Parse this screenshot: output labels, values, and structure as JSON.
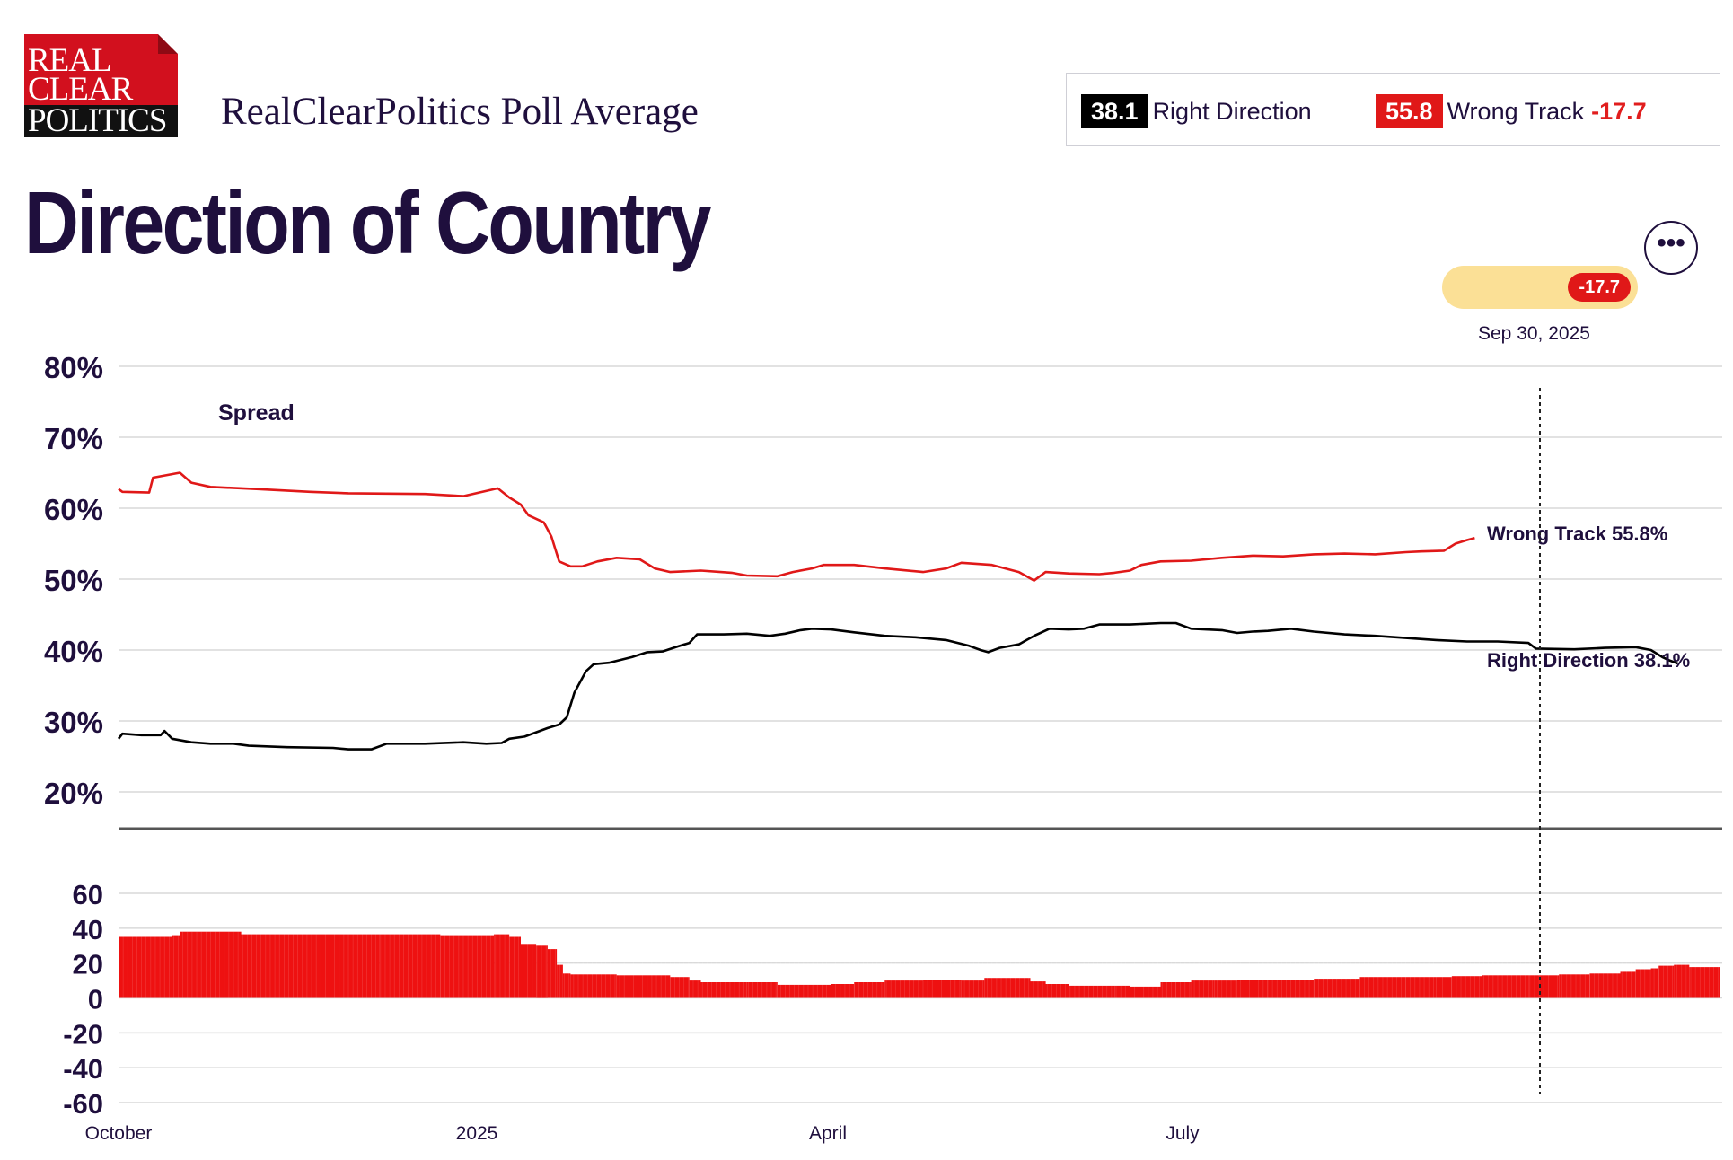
{
  "logo": {
    "line1": "REAL",
    "line2": "CLEAR",
    "line3": "POLITICS"
  },
  "header": {
    "subtitle": "RealClearPolitics Poll Average",
    "title": "Direction of Country"
  },
  "summary": {
    "right_value": "38.1",
    "right_label": "Right Direction",
    "wrong_value": "55.8",
    "wrong_label": "Wrong Track",
    "spread": "-17.7"
  },
  "toolbar": {
    "more_label": "•••"
  },
  "hover": {
    "spread_badge": "-17.7",
    "date": "Sep 30, 2025"
  },
  "colors": {
    "right": "#000000",
    "wrong": "#e01818",
    "spread_bar": "#ee1111",
    "pill": "#fbe096",
    "text": "#1f0f3d"
  },
  "chart_data": [
    {
      "type": "line",
      "yticks": [
        "80%",
        "70%",
        "60%",
        "50%",
        "40%",
        "30%",
        "20%"
      ],
      "ylim": [
        15,
        80
      ],
      "x_ticks": [
        "October",
        "2025",
        "April",
        "July"
      ],
      "series": [
        {
          "name": "Wrong Track",
          "end_label": "Wrong Track 55.8%",
          "color": "#e01818",
          "points": [
            [
              0,
              62.7
            ],
            [
              5,
              62.3
            ],
            [
              40,
              62.2
            ],
            [
              45,
              64.3
            ],
            [
              80,
              65.0
            ],
            [
              95,
              63.6
            ],
            [
              120,
              63.0
            ],
            [
              180,
              62.7
            ],
            [
              250,
              62.3
            ],
            [
              300,
              62.1
            ],
            [
              400,
              62.0
            ],
            [
              450,
              61.7
            ],
            [
              495,
              62.8
            ],
            [
              510,
              61.5
            ],
            [
              525,
              60.5
            ],
            [
              535,
              59.0
            ],
            [
              555,
              58.0
            ],
            [
              565,
              56.0
            ],
            [
              575,
              52.5
            ],
            [
              590,
              51.8
            ],
            [
              605,
              51.8
            ],
            [
              625,
              52.5
            ],
            [
              650,
              53.0
            ],
            [
              680,
              52.8
            ],
            [
              700,
              51.5
            ],
            [
              720,
              51.0
            ],
            [
              760,
              51.2
            ],
            [
              800,
              50.9
            ],
            [
              820,
              50.5
            ],
            [
              860,
              50.4
            ],
            [
              880,
              51.0
            ],
            [
              905,
              51.5
            ],
            [
              920,
              52.0
            ],
            [
              960,
              52.0
            ],
            [
              1000,
              51.5
            ],
            [
              1050,
              51.0
            ],
            [
              1080,
              51.5
            ],
            [
              1100,
              52.3
            ],
            [
              1140,
              52.0
            ],
            [
              1175,
              51.0
            ],
            [
              1195,
              49.8
            ],
            [
              1210,
              51.0
            ],
            [
              1240,
              50.8
            ],
            [
              1280,
              50.7
            ],
            [
              1300,
              50.9
            ],
            [
              1320,
              51.2
            ],
            [
              1335,
              52.0
            ],
            [
              1360,
              52.5
            ],
            [
              1400,
              52.6
            ],
            [
              1440,
              53.0
            ],
            [
              1480,
              53.3
            ],
            [
              1520,
              53.2
            ],
            [
              1560,
              53.5
            ],
            [
              1600,
              53.6
            ],
            [
              1640,
              53.5
            ],
            [
              1680,
              53.8
            ],
            [
              1700,
              53.9
            ],
            [
              1730,
              54.0
            ],
            [
              1745,
              55.0
            ],
            [
              1760,
              55.5
            ],
            [
              1770,
              55.8
            ]
          ]
        },
        {
          "name": "Right Direction",
          "end_label": "Right Direction 38.1%",
          "color": "#000000",
          "points": [
            [
              0,
              27.5
            ],
            [
              5,
              28.2
            ],
            [
              30,
              28.0
            ],
            [
              55,
              28.0
            ],
            [
              60,
              28.6
            ],
            [
              70,
              27.5
            ],
            [
              95,
              27.0
            ],
            [
              120,
              26.8
            ],
            [
              150,
              26.8
            ],
            [
              170,
              26.5
            ],
            [
              220,
              26.3
            ],
            [
              280,
              26.2
            ],
            [
              300,
              26.0
            ],
            [
              330,
              26.0
            ],
            [
              350,
              26.8
            ],
            [
              400,
              26.8
            ],
            [
              450,
              27.0
            ],
            [
              480,
              26.8
            ],
            [
              500,
              26.9
            ],
            [
              510,
              27.5
            ],
            [
              530,
              27.8
            ],
            [
              560,
              29.0
            ],
            [
              575,
              29.5
            ],
            [
              585,
              30.5
            ],
            [
              595,
              34.0
            ],
            [
              610,
              37.0
            ],
            [
              620,
              38.0
            ],
            [
              640,
              38.2
            ],
            [
              670,
              39.0
            ],
            [
              690,
              39.7
            ],
            [
              710,
              39.8
            ],
            [
              730,
              40.5
            ],
            [
              745,
              41.0
            ],
            [
              755,
              42.2
            ],
            [
              790,
              42.2
            ],
            [
              820,
              42.3
            ],
            [
              850,
              42.0
            ],
            [
              870,
              42.3
            ],
            [
              890,
              42.8
            ],
            [
              905,
              43.0
            ],
            [
              930,
              42.9
            ],
            [
              960,
              42.5
            ],
            [
              1000,
              42.0
            ],
            [
              1040,
              41.8
            ],
            [
              1080,
              41.4
            ],
            [
              1110,
              40.6
            ],
            [
              1125,
              40.0
            ],
            [
              1135,
              39.7
            ],
            [
              1150,
              40.3
            ],
            [
              1175,
              40.8
            ],
            [
              1195,
              42.0
            ],
            [
              1215,
              43.0
            ],
            [
              1240,
              42.9
            ],
            [
              1260,
              43.0
            ],
            [
              1280,
              43.6
            ],
            [
              1320,
              43.6
            ],
            [
              1360,
              43.8
            ],
            [
              1380,
              43.8
            ],
            [
              1400,
              43.0
            ],
            [
              1440,
              42.8
            ],
            [
              1460,
              42.4
            ],
            [
              1480,
              42.6
            ],
            [
              1500,
              42.7
            ],
            [
              1530,
              43.0
            ],
            [
              1560,
              42.6
            ],
            [
              1600,
              42.2
            ],
            [
              1640,
              42.0
            ],
            [
              1680,
              41.7
            ],
            [
              1720,
              41.4
            ],
            [
              1760,
              41.2
            ],
            [
              1800,
              41.2
            ],
            [
              1840,
              41.0
            ],
            [
              1850,
              40.2
            ],
            [
              1900,
              40.1
            ],
            [
              1940,
              40.3
            ],
            [
              1980,
              40.4
            ],
            [
              2000,
              40.0
            ],
            [
              2015,
              39.0
            ],
            [
              2025,
              38.5
            ],
            [
              2035,
              38.1
            ]
          ]
        }
      ]
    },
    {
      "type": "bar",
      "title": "Spread",
      "yticks": [
        "60",
        "40",
        "20",
        "0",
        "-20",
        "-40",
        "-60"
      ],
      "ylim": [
        -60,
        60
      ],
      "x_ticks": [
        "October",
        "2025",
        "April",
        "July"
      ],
      "series": [
        {
          "name": "Spread",
          "color": "#ee1111",
          "segments": [
            [
              0,
              35.0
            ],
            [
              70,
              36.0
            ],
            [
              80,
              38.0
            ],
            [
              160,
              36.5
            ],
            [
              340,
              36.5
            ],
            [
              420,
              36.0
            ],
            [
              490,
              36.5
            ],
            [
              510,
              35.0
            ],
            [
              525,
              31.0
            ],
            [
              545,
              30.0
            ],
            [
              560,
              28.0
            ],
            [
              572,
              19.0
            ],
            [
              580,
              14.0
            ],
            [
              590,
              13.5
            ],
            [
              650,
              13.0
            ],
            [
              700,
              13.0
            ],
            [
              720,
              12.0
            ],
            [
              745,
              10.0
            ],
            [
              760,
              9.0
            ],
            [
              820,
              9.0
            ],
            [
              860,
              7.5
            ],
            [
              900,
              7.5
            ],
            [
              930,
              8.0
            ],
            [
              960,
              9.0
            ],
            [
              1000,
              10.0
            ],
            [
              1050,
              10.5
            ],
            [
              1100,
              10.0
            ],
            [
              1130,
              11.5
            ],
            [
              1160,
              11.5
            ],
            [
              1190,
              9.5
            ],
            [
              1210,
              8.0
            ],
            [
              1240,
              7.0
            ],
            [
              1300,
              7.0
            ],
            [
              1320,
              6.5
            ],
            [
              1340,
              6.5
            ],
            [
              1360,
              9.0
            ],
            [
              1380,
              9.0
            ],
            [
              1400,
              10.0
            ],
            [
              1430,
              10.0
            ],
            [
              1460,
              10.5
            ],
            [
              1500,
              10.5
            ],
            [
              1560,
              11.0
            ],
            [
              1620,
              12.0
            ],
            [
              1680,
              12.0
            ],
            [
              1720,
              12.0
            ],
            [
              1740,
              12.5
            ],
            [
              1780,
              13.0
            ],
            [
              1840,
              13.0
            ],
            [
              1880,
              13.5
            ],
            [
              1920,
              14.0
            ],
            [
              1960,
              15.0
            ],
            [
              1980,
              16.5
            ],
            [
              2000,
              17.0
            ],
            [
              2010,
              18.5
            ],
            [
              2030,
              19.0
            ],
            [
              2050,
              17.7
            ],
            [
              2090,
              17.7
            ]
          ]
        }
      ]
    }
  ]
}
